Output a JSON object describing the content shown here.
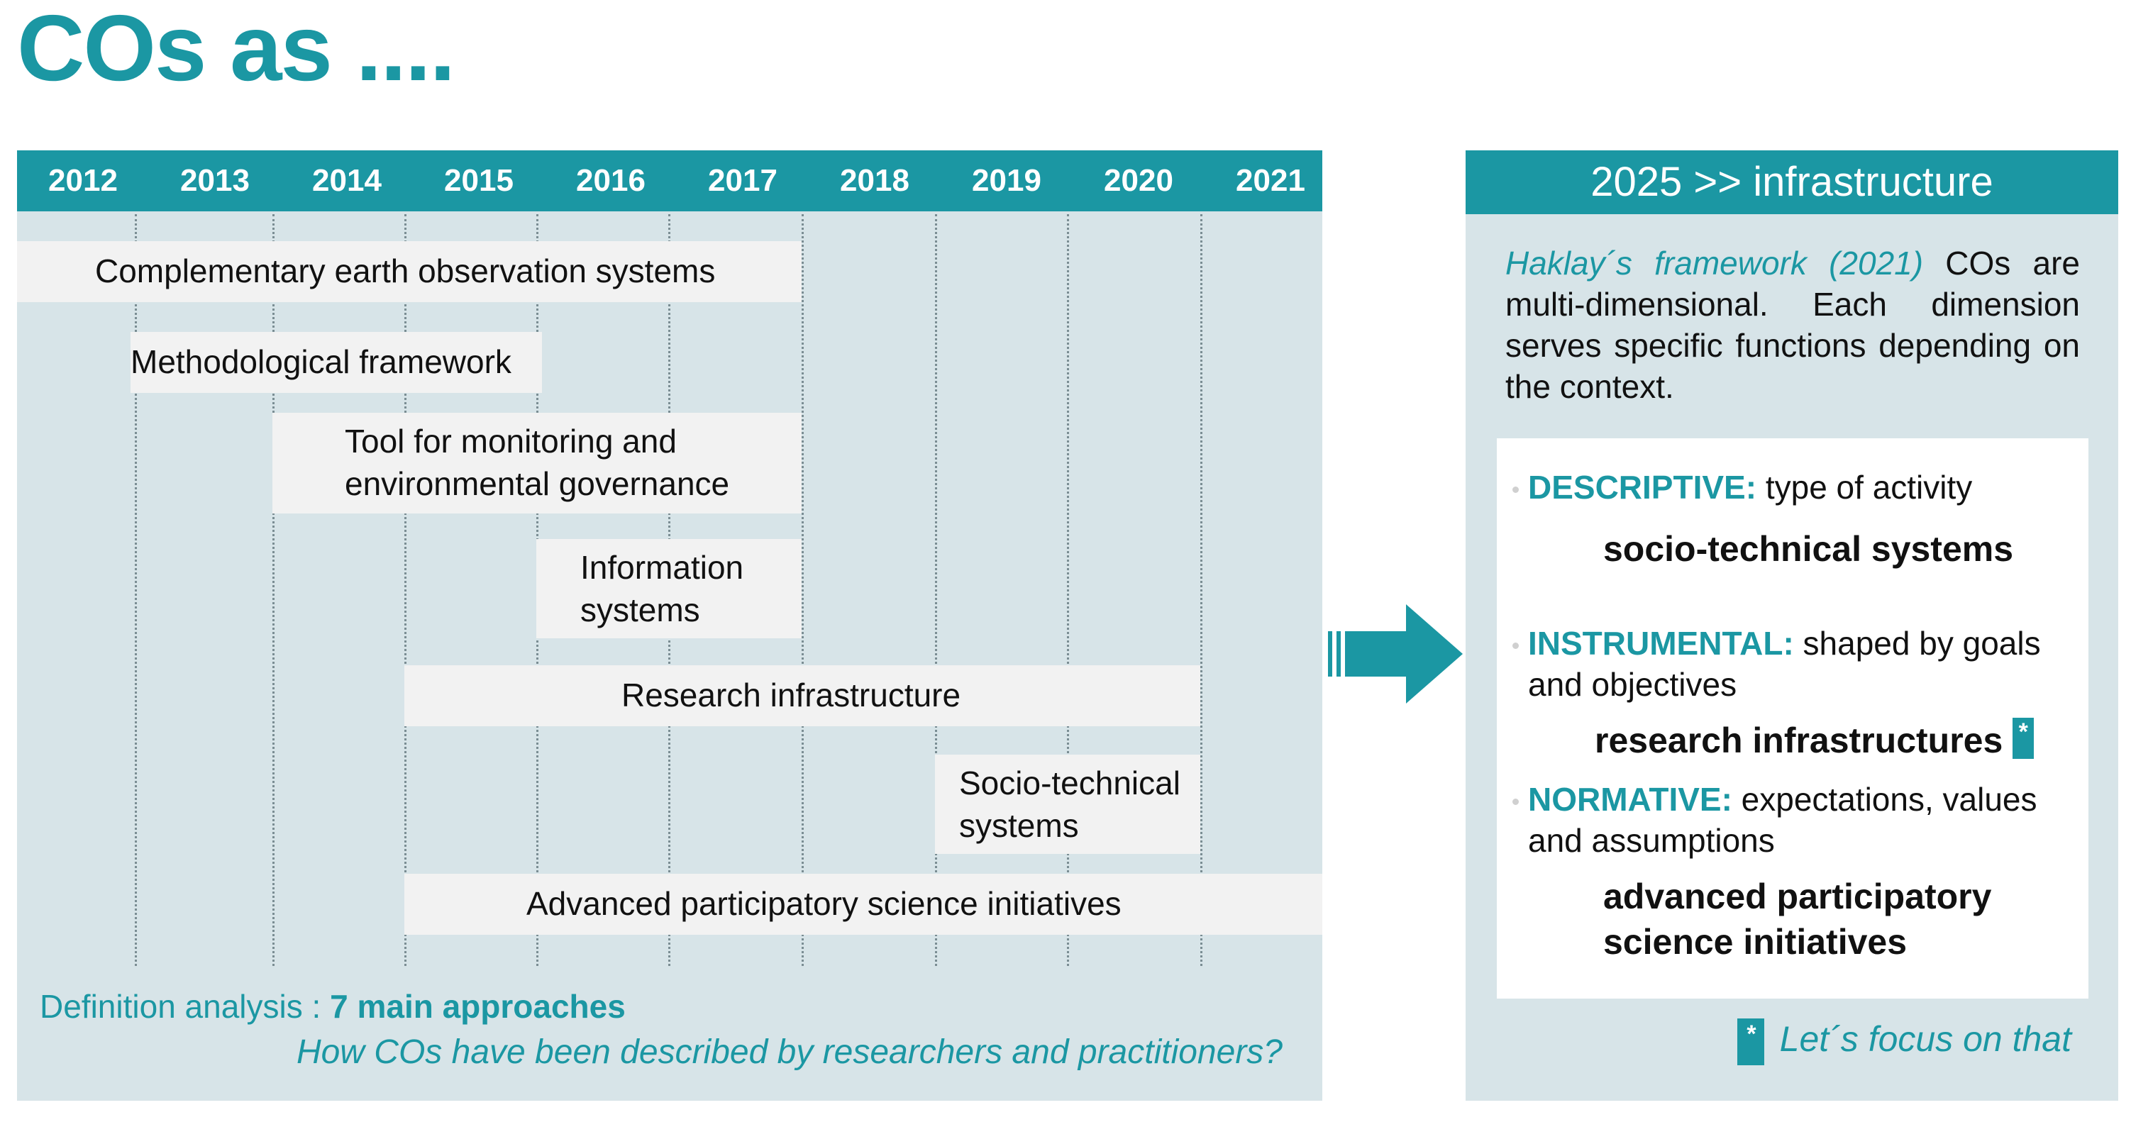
{
  "title": "COs as ....",
  "timeline": {
    "years": [
      "2012",
      "2013",
      "2014",
      "2015",
      "2016",
      "2017",
      "2018",
      "2019",
      "2020",
      "2021"
    ],
    "approaches": [
      {
        "label": "Complementary earth observation systems",
        "start": "2012",
        "end": "2017"
      },
      {
        "label": "Methodological framework",
        "start": "2012",
        "end": "2015"
      },
      {
        "label": "Tool for monitoring and\nenvironmental governance",
        "start": "2014",
        "end": "2017"
      },
      {
        "label": "Information\nsystems",
        "start": "2016",
        "end": "2017"
      },
      {
        "label": "Research infrastructure",
        "start": "2015",
        "end": "2020"
      },
      {
        "label": "Socio-technical\nsystems",
        "start": "2019",
        "end": "2020"
      },
      {
        "label": "Advanced participatory science initiatives",
        "start": "2015",
        "end": "2021"
      }
    ],
    "definition_prefix": "Definition analysis : ",
    "definition_bold": "7 main approaches",
    "question": "How COs have been described by researchers and practitioners?"
  },
  "right": {
    "header": "2025 >> infrastructure",
    "intro_ref": "Haklay´s framework (2021)",
    "intro_text": " COs are multi-dimensional. Each dimension serves specific functions depending on the context.",
    "items": [
      {
        "keyword": "DESCRIPTIVE:",
        "text": " type of activity",
        "result": "socio-technical systems"
      },
      {
        "keyword": "INSTRUMENTAL:",
        "text": " shaped by goals and objectives",
        "result": "research infrastructures"
      },
      {
        "keyword": "NORMATIVE:",
        "text": " expectations, values and assumptions",
        "result": "advanced participatory science initiatives"
      }
    ],
    "star": "*",
    "focus": "Let´s focus on that"
  },
  "colors": {
    "accent": "#1b97a3",
    "panel": "#d7e4e8",
    "bar": "#f2f2f2"
  }
}
